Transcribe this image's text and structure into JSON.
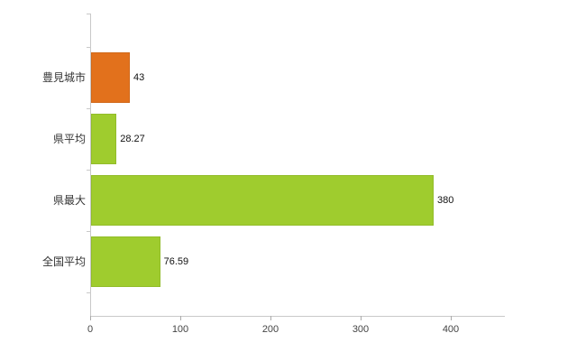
{
  "chart_data": {
    "type": "bar",
    "orientation": "horizontal",
    "title": "",
    "xlabel": "",
    "ylabel": "",
    "categories": [
      "豊見城市",
      "県平均",
      "県最大",
      "全国平均"
    ],
    "values": [
      43,
      28.27,
      380,
      76.59
    ],
    "value_labels": [
      "43",
      "28.27",
      "380",
      "76.59"
    ],
    "bar_colors": [
      "#e2711c",
      "#9fcc2e",
      "#9fcc2e",
      "#9fcc2e"
    ],
    "xticks": [
      0,
      100,
      200,
      300,
      400
    ],
    "xtick_labels": [
      "0",
      "100",
      "200",
      "300",
      "400"
    ],
    "xlim": [
      0,
      460
    ],
    "grid": false,
    "legend": false
  },
  "colors": {
    "accent_orange": "#e2711c",
    "accent_green": "#9fcc2e",
    "axis": "#c9c9c9",
    "tick_label": "#444444",
    "category_label": "#333333"
  }
}
